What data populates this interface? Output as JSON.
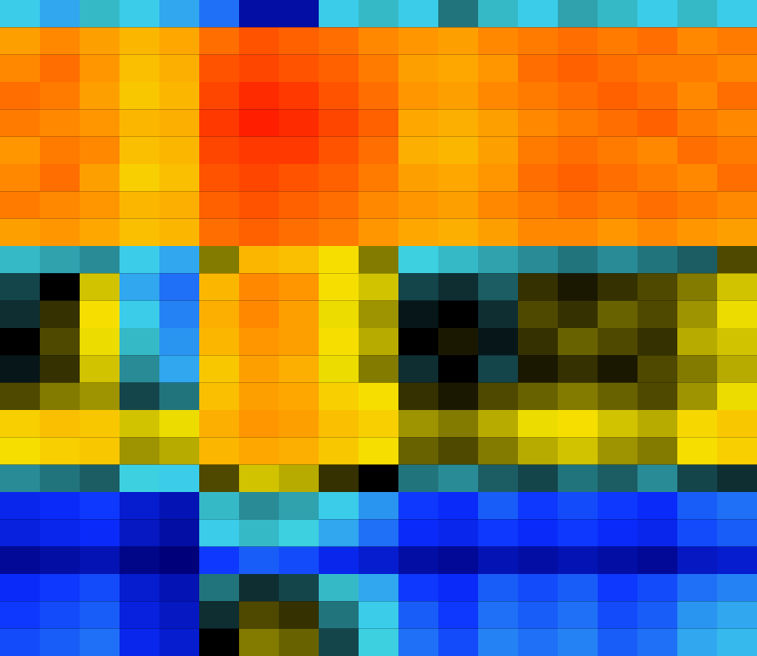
{
  "chart_data": {
    "type": "heatmap",
    "tick_labels": false,
    "values": [
      [
        -1,
        -1.2,
        -0.8,
        -1,
        -1.2,
        -1.5,
        -2.5,
        -2.5,
        -1,
        -0.8,
        -1,
        -0.5,
        -0.8,
        -1,
        -0.7,
        -0.8,
        -1,
        -0.8,
        -1
      ],
      [
        1.8,
        2,
        1.8,
        1.5,
        1.7,
        2.2,
        2.4,
        2.3,
        2.2,
        2,
        1.9,
        1.8,
        2,
        2.1,
        2.2,
        2.1,
        2.2,
        2,
        2.1
      ],
      [
        2,
        2.2,
        1.9,
        1.4,
        1.6,
        2.4,
        2.5,
        2.4,
        2.3,
        2.1,
        1.8,
        1.7,
        1.9,
        2.2,
        2.3,
        2.2,
        2.1,
        2.1,
        2
      ],
      [
        2.2,
        2.1,
        1.8,
        1.3,
        1.5,
        2.5,
        2.7,
        2.6,
        2.4,
        2.2,
        1.9,
        1.8,
        2,
        2.1,
        2.2,
        2.3,
        2.2,
        2,
        2.2
      ],
      [
        2.1,
        2,
        1.9,
        1.5,
        1.6,
        2.6,
        2.8,
        2.7,
        2.5,
        2.3,
        1.7,
        1.6,
        1.8,
        2,
        2.1,
        2.2,
        2.3,
        2.1,
        2
      ],
      [
        1.9,
        2.1,
        2,
        1.4,
        1.5,
        2.5,
        2.6,
        2.6,
        2.4,
        2.2,
        1.6,
        1.5,
        1.8,
        2.1,
        2.2,
        2.1,
        2,
        2.2,
        2.1
      ],
      [
        2,
        2.2,
        1.8,
        1.2,
        1.4,
        2.4,
        2.5,
        2.4,
        2.3,
        2.1,
        1.8,
        1.7,
        1.9,
        2.2,
        2.3,
        2.2,
        2.1,
        2,
        2.2
      ],
      [
        2.1,
        2,
        1.9,
        1.5,
        1.6,
        2.3,
        2.4,
        2.3,
        2.2,
        2,
        1.9,
        1.8,
        2,
        2.1,
        2.2,
        2.1,
        2.2,
        2.1,
        2
      ],
      [
        1.8,
        1.9,
        1.7,
        1.4,
        1.5,
        2.2,
        2.3,
        2.2,
        2.1,
        1.9,
        1.7,
        1.6,
        1.8,
        2,
        2,
        1.9,
        2,
        1.9,
        1.8
      ],
      [
        -0.8,
        -0.7,
        -0.6,
        -1,
        -1.2,
        0.5,
        1.5,
        1.4,
        1,
        0.5,
        -0.9,
        -0.8,
        -0.7,
        -0.6,
        -0.5,
        -0.6,
        -0.5,
        -0.4,
        0.3
      ],
      [
        -0.3,
        0,
        0.8,
        -1.2,
        -1.5,
        1.5,
        2,
        1.9,
        1,
        0.8,
        -0.3,
        -0.2,
        -0.4,
        0.2,
        0.1,
        0.2,
        0.3,
        0.5,
        0.8
      ],
      [
        -0.2,
        0.2,
        1,
        -1,
        -1.4,
        1.6,
        2,
        1.8,
        0.9,
        0.6,
        -0.1,
        0,
        -0.2,
        0.3,
        0.2,
        0.4,
        0.3,
        0.6,
        0.9
      ],
      [
        0,
        0.3,
        0.9,
        -0.8,
        -1.3,
        1.5,
        1.9,
        1.8,
        1,
        0.7,
        0,
        0.1,
        -0.1,
        0.2,
        0.4,
        0.3,
        0.2,
        0.7,
        0.8
      ],
      [
        -0.1,
        0.2,
        0.8,
        -0.6,
        -1.2,
        1.3,
        1.8,
        1.6,
        0.9,
        0.5,
        -0.2,
        0,
        -0.3,
        0.1,
        0.2,
        0.1,
        0.3,
        0.5,
        0.7
      ],
      [
        0.3,
        0.5,
        0.6,
        -0.3,
        -0.5,
        1.4,
        1.8,
        1.7,
        1.2,
        1,
        0.2,
        0.1,
        0.3,
        0.4,
        0.5,
        0.4,
        0.3,
        0.6,
        0.9
      ],
      [
        1.2,
        1.4,
        1.3,
        0.8,
        0.9,
        1.6,
        1.9,
        1.8,
        1.4,
        1.2,
        0.6,
        0.5,
        0.7,
        0.9,
        1,
        0.8,
        0.7,
        1.1,
        1.3
      ],
      [
        1,
        1.2,
        1.3,
        0.6,
        0.7,
        1.5,
        1.7,
        1.6,
        1.3,
        1,
        0.4,
        0.3,
        0.5,
        0.7,
        0.8,
        0.6,
        0.5,
        1,
        1.2
      ],
      [
        -0.6,
        -0.5,
        -0.4,
        -0.9,
        -1,
        0.3,
        0.8,
        0.7,
        0.2,
        0,
        -0.5,
        -0.6,
        -0.4,
        -0.3,
        -0.5,
        -0.4,
        -0.6,
        -0.3,
        -0.2
      ],
      [
        -2,
        -1.9,
        -1.8,
        -2.2,
        -2.4,
        -0.8,
        -0.6,
        -0.7,
        -1,
        -1.3,
        -1.8,
        -1.9,
        -1.6,
        -1.8,
        -1.7,
        -1.8,
        -1.9,
        -1.6,
        -1.5
      ],
      [
        -2.1,
        -2,
        -1.9,
        -2.3,
        -2.5,
        -1,
        -0.8,
        -0.9,
        -1.2,
        -1.5,
        -1.9,
        -2,
        -1.8,
        -1.9,
        -1.8,
        -1.9,
        -2,
        -1.7,
        -1.6
      ],
      [
        -2.6,
        -2.5,
        -2.4,
        -2.7,
        -2.8,
        -1.8,
        -1.6,
        -1.7,
        -2,
        -2.2,
        -2.5,
        -2.6,
        -2.4,
        -2.5,
        -2.4,
        -2.5,
        -2.6,
        -2.3,
        -2.2
      ],
      [
        -1.9,
        -1.8,
        -1.7,
        -2.2,
        -2.4,
        -0.5,
        -0.2,
        -0.3,
        -0.8,
        -1.2,
        -1.8,
        -1.9,
        -1.6,
        -1.7,
        -1.6,
        -1.8,
        -1.7,
        -1.5,
        -1.4
      ],
      [
        -1.8,
        -1.7,
        -1.6,
        -2.1,
        -2.3,
        -0.2,
        0.3,
        0.2,
        -0.5,
        -1,
        -1.6,
        -1.8,
        -1.5,
        -1.6,
        -1.5,
        -1.7,
        -1.6,
        -1.3,
        -1.2
      ],
      [
        -1.7,
        -1.6,
        -1.5,
        -2,
        -2.2,
        0,
        0.5,
        0.4,
        -0.3,
        -0.9,
        -1.5,
        -1.7,
        -1.4,
        -1.5,
        -1.4,
        -1.6,
        -1.5,
        -1.2,
        -1.1
      ]
    ]
  }
}
